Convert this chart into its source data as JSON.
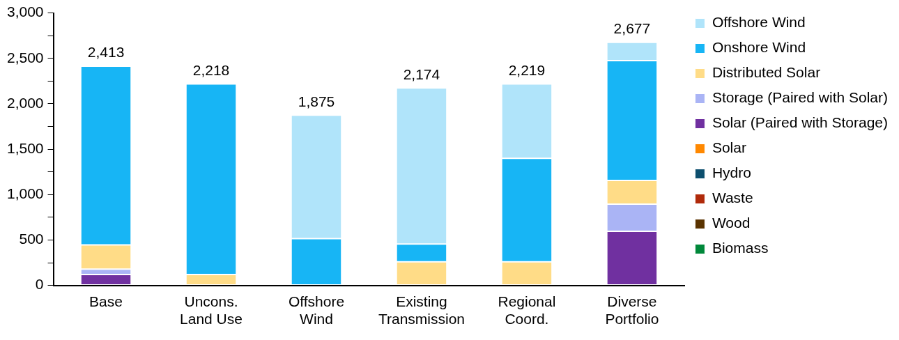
{
  "chart_data": {
    "type": "bar",
    "stacked": true,
    "categories": [
      "Base",
      "Uncons.\nLand Use",
      "Offshore\nWind",
      "Existing\nTransmission",
      "Regional\nCoord.",
      "Diverse\nPortfolio"
    ],
    "series": [
      {
        "name": "Biomass",
        "color": "#00883a",
        "values": [
          0,
          0,
          0,
          0,
          0,
          0
        ]
      },
      {
        "name": "Wood",
        "color": "#5a3300",
        "values": [
          0,
          0,
          0,
          0,
          0,
          0
        ]
      },
      {
        "name": "Waste",
        "color": "#b02a0a",
        "values": [
          0,
          0,
          0,
          0,
          0,
          0
        ]
      },
      {
        "name": "Hydro",
        "color": "#0d4f6e",
        "values": [
          0,
          0,
          0,
          0,
          0,
          0
        ]
      },
      {
        "name": "Solar",
        "color": "#ff8800",
        "values": [
          0,
          0,
          0,
          0,
          0,
          0
        ]
      },
      {
        "name": "Solar (Paired with Storage)",
        "color": "#7030a0",
        "values": [
          120,
          0,
          0,
          0,
          0,
          595
        ]
      },
      {
        "name": "Storage (Paired with Solar)",
        "color": "#aab4f5",
        "values": [
          60,
          0,
          0,
          0,
          0,
          300
        ]
      },
      {
        "name": "Distributed Solar",
        "color": "#ffdc87",
        "values": [
          265,
          120,
          0,
          260,
          260,
          260
        ]
      },
      {
        "name": "Onshore Wind",
        "color": "#17b5f5",
        "values": [
          1968,
          2098,
          515,
          195,
          1140,
          1320
        ]
      },
      {
        "name": "Offshore Wind",
        "color": "#b0e4fa",
        "values": [
          0,
          0,
          1360,
          1719,
          819,
          202
        ]
      }
    ],
    "totals": [
      "2,413",
      "2,218",
      "1,875",
      "2,174",
      "2,219",
      "2,677"
    ],
    "ylim": [
      0,
      3000
    ],
    "yticks": [
      0,
      {
        "value": 250,
        "label": null
      },
      500,
      {
        "value": 750,
        "label": null
      },
      {
        "value": 1000,
        "label": "1,000"
      },
      {
        "value": 1250,
        "label": null
      },
      {
        "value": 1500,
        "label": "1,500"
      },
      {
        "value": 1750,
        "label": null
      },
      {
        "value": 2000,
        "label": "2,000"
      },
      {
        "value": 2250,
        "label": null
      },
      {
        "value": 2500,
        "label": "2,500"
      },
      {
        "value": 2750,
        "label": null
      },
      {
        "value": 3000,
        "label": "3,000"
      }
    ],
    "grid": false,
    "legend": "right"
  }
}
